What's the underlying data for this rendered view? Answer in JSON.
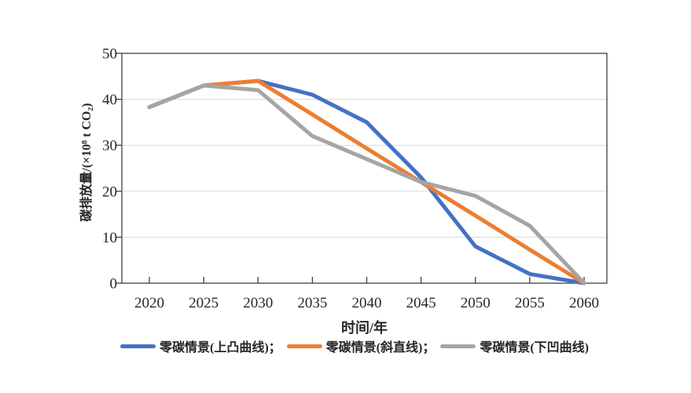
{
  "figure": {
    "background": "#ffffff"
  },
  "chart_data": {
    "type": "line",
    "x": [
      2020,
      2025,
      2030,
      2035,
      2040,
      2045,
      2050,
      2055,
      2060
    ],
    "series": [
      {
        "key": "convex",
        "name": "零碳情景(上凸曲线)",
        "legend_label": "零碳情景(上凸曲线)；",
        "color": "#4472C4",
        "values": [
          38.3,
          43,
          44,
          41,
          35,
          23,
          8,
          2,
          0
        ]
      },
      {
        "key": "linear",
        "name": "零碳情景(斜直线)",
        "legend_label": "零碳情景(斜直线)；",
        "color": "#ED7D31",
        "values": [
          38.3,
          43,
          44,
          36.7,
          29.3,
          22,
          14.7,
          7.3,
          0
        ]
      },
      {
        "key": "concave",
        "name": "零碳情景(下凹曲线)",
        "legend_label": "零碳情景(下凹曲线)",
        "color": "#A5A5A5",
        "values": [
          38.3,
          43,
          42,
          32,
          27,
          22,
          19,
          12.5,
          0
        ]
      }
    ],
    "xlabel": "时间/年",
    "ylabel": "碳排放量/(×10⁸ t CO₂)",
    "xlim": [
      2020,
      2060
    ],
    "ylim": [
      0,
      50
    ],
    "xticks": [
      2020,
      2025,
      2030,
      2035,
      2040,
      2045,
      2050,
      2055,
      2060
    ],
    "yticks": [
      0,
      10,
      20,
      30,
      40,
      50
    ],
    "grid": "horizontal",
    "legend_position": "bottom",
    "axis_color": "#404040",
    "grid_color": "#d9d9d9",
    "text_color": "#262626",
    "line_width": 5
  }
}
